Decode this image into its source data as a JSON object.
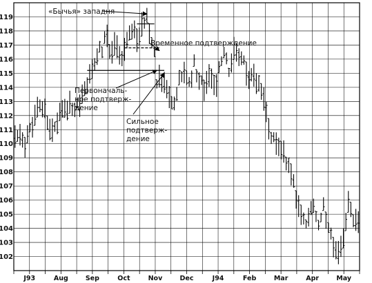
{
  "chart_data": {
    "type": "bar",
    "subtype": "ohlc",
    "title": "",
    "xlabel": "",
    "ylabel": "",
    "ylim": [
      101,
      120
    ],
    "y_ticks": [
      102,
      103,
      104,
      105,
      106,
      107,
      108,
      109,
      110,
      111,
      112,
      113,
      114,
      115,
      116,
      117,
      118,
      119
    ],
    "x_ticks": [
      "J93",
      "Aug",
      "Sep",
      "Oct",
      "Nov",
      "Dec",
      "J94",
      "Feb",
      "Mar",
      "Apr",
      "May"
    ],
    "grid": true,
    "line_color": "#000000",
    "price_path": [
      [
        0,
        110.5
      ],
      [
        4,
        110.2
      ],
      [
        8,
        111.8
      ],
      [
        10,
        112.6
      ],
      [
        12,
        112.2
      ],
      [
        14,
        111.0
      ],
      [
        16,
        111.2
      ],
      [
        18,
        112.0
      ],
      [
        20,
        112.6
      ],
      [
        23,
        112.4
      ],
      [
        25,
        113.0
      ],
      [
        27,
        113.2
      ],
      [
        29,
        114.0
      ],
      [
        31,
        115.2
      ],
      [
        33,
        116.3
      ],
      [
        35,
        116.8
      ],
      [
        37,
        117.5
      ],
      [
        39,
        116.5
      ],
      [
        41,
        117.3
      ],
      [
        43,
        116.1
      ],
      [
        45,
        117.2
      ],
      [
        47,
        118.2
      ],
      [
        49,
        117.4
      ],
      [
        51,
        117.9
      ],
      [
        53,
        119.4
      ],
      [
        54,
        118.0
      ],
      [
        55,
        117.2
      ],
      [
        56,
        116.4
      ],
      [
        57,
        114.6
      ],
      [
        58,
        115.0
      ],
      [
        59,
        114.1
      ],
      [
        60,
        114.6
      ],
      [
        62,
        113.4
      ],
      [
        64,
        112.6
      ],
      [
        66,
        114.5
      ],
      [
        68,
        115.0
      ],
      [
        70,
        114.3
      ],
      [
        72,
        115.5
      ],
      [
        74,
        114.6
      ],
      [
        76,
        114.0
      ],
      [
        78,
        115.0
      ],
      [
        80,
        114.0
      ],
      [
        82,
        115.2
      ],
      [
        84,
        116.2
      ],
      [
        86,
        115.4
      ],
      [
        88,
        116.6
      ],
      [
        90,
        115.8
      ],
      [
        92,
        116.0
      ],
      [
        94,
        114.6
      ],
      [
        96,
        114.8
      ],
      [
        98,
        114.0
      ],
      [
        100,
        113.0
      ],
      [
        102,
        111.0
      ],
      [
        104,
        110.3
      ],
      [
        106,
        109.6
      ],
      [
        108,
        109.3
      ],
      [
        110,
        108.3
      ],
      [
        112,
        107.0
      ],
      [
        114,
        105.6
      ],
      [
        116,
        104.4
      ],
      [
        118,
        104.8
      ],
      [
        120,
        105.6
      ],
      [
        122,
        104.3
      ],
      [
        124,
        105.3
      ],
      [
        126,
        104.2
      ],
      [
        128,
        103.0
      ],
      [
        130,
        102.2
      ],
      [
        132,
        103.5
      ],
      [
        134,
        105.6
      ],
      [
        136,
        104.8
      ],
      [
        138,
        104.2
      ]
    ],
    "price_levels": [
      {
        "from": 49,
        "to": 56,
        "y": 118.5
      },
      {
        "from": 44,
        "to": 58,
        "y": 116.8
      },
      {
        "from": 29,
        "to": 60,
        "y": 115.2
      }
    ],
    "annotations": [
      {
        "id": "bull_trap",
        "lines": [
          "«Бычья» западня"
        ],
        "target": [
          53,
          119.4
        ]
      },
      {
        "id": "temporary",
        "lines": [
          "Временное подтверждение"
        ],
        "target": [
          58,
          116.8
        ]
      },
      {
        "id": "initial",
        "lines": [
          "Первоначаль-",
          "ное подтверж-",
          "дение"
        ],
        "target": [
          57,
          115.4
        ]
      },
      {
        "id": "strong",
        "lines": [
          "Сильное",
          "подтверж-",
          "дение"
        ],
        "target": [
          60,
          115.2
        ]
      }
    ]
  }
}
